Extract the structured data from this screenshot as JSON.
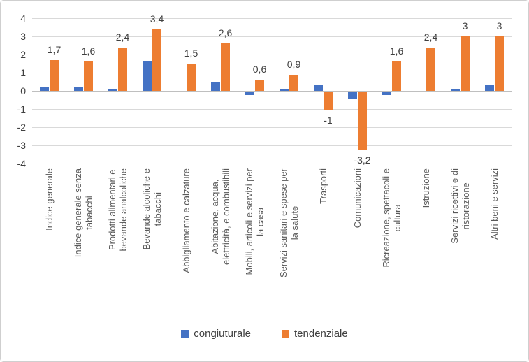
{
  "chart_data": {
    "type": "bar",
    "title": "",
    "xlabel": "",
    "ylabel": "",
    "ylim": [
      -4,
      4
    ],
    "ytick_step": 1,
    "grid": true,
    "legend_position": "bottom",
    "value_label_decimal_separator": ",",
    "categories": [
      "Indice generale",
      "Indice generale senza\ntabacchi",
      "Prodotti alimentari e\nbevande analcoliche",
      "Bevande alcoliche e\ntabacchi",
      "Abbigliamento e calzature",
      "Abitazione, acqua,\nelettricità, e combustibili",
      "Mobili, articoli e servizi per\nla casa",
      "Servizi sanitari e spese per\nla salute",
      "Trasporti",
      "Comunicazioni",
      "Ricreazione, spettacoli e\ncultura",
      "Istruzione",
      "Servizi ricettivi e di\nristorazione",
      "Altri beni e servizi"
    ],
    "series": [
      {
        "name": "congiuturale",
        "color": "#4472C4",
        "values": [
          0.2,
          0.2,
          0.1,
          1.6,
          0,
          0.5,
          -0.2,
          0.1,
          0.3,
          -0.4,
          -0.2,
          0,
          0.1,
          0.3
        ],
        "show_labels": false
      },
      {
        "name": "tendenziale",
        "color": "#ED7D31",
        "values": [
          1.7,
          1.6,
          2.4,
          3.4,
          1.5,
          2.6,
          0.6,
          0.9,
          -1,
          -3.2,
          1.6,
          2.4,
          3,
          3
        ],
        "labels": [
          "1,7",
          "1,6",
          "2,4",
          "3,4",
          "1,5",
          "2,6",
          "0,6",
          "0,9",
          "-1",
          "-3,2",
          "1,6",
          "2,4",
          "3",
          "3"
        ],
        "show_labels": true
      }
    ]
  },
  "colors": {
    "gridline": "#d9d9d9",
    "axis_line": "#bfbfbf",
    "tick_text": "#404040",
    "category_text": "#595959",
    "frame_border": "#cfcfcf",
    "background": "#ffffff"
  }
}
